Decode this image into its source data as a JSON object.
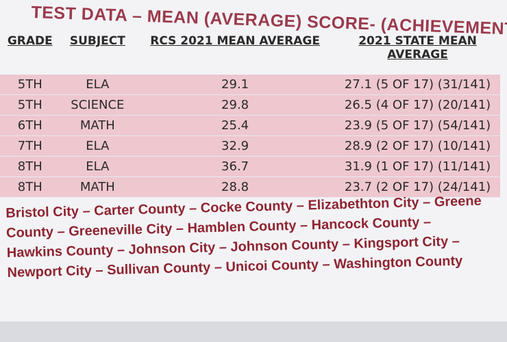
{
  "header": {
    "title": "TEST DATA – MEAN (AVERAGE) SCORE- (ACHIEVEMENT DATA)"
  },
  "table": {
    "columns": [
      "GRADE",
      "SUBJECT",
      "RCS 2021 MEAN AVERAGE",
      "2021 STATE MEAN AVERAGE"
    ],
    "rows": [
      [
        "5TH",
        "ELA",
        "29.1",
        "27.1 (5 OF 17) (31/141)"
      ],
      [
        "5TH",
        "SCIENCE",
        "29.8",
        "26.5 (4 OF 17) (20/141)"
      ],
      [
        "6TH",
        "MATH",
        "25.4",
        "23.9 (5 OF 17) (54/141)"
      ],
      [
        "7TH",
        "ELA",
        "32.9",
        "28.9 (2 OF 17) (10/141)"
      ],
      [
        "8TH",
        "ELA",
        "36.7",
        "31.9 (1 OF 17) (11/141)"
      ],
      [
        "8TH",
        "MATH",
        "28.8",
        "23.7 (2 OF 17) (24/141)"
      ]
    ]
  },
  "footer": {
    "text": "Bristol City – Carter County – Cocke County – Elizabethton City – Greene County – Greeneville City – Hamblen County – Hancock County – Hawkins County – Johnson City – Johnson County – Kingsport City – Newport City – Sullivan County – Unicoi County – Washington County"
  }
}
